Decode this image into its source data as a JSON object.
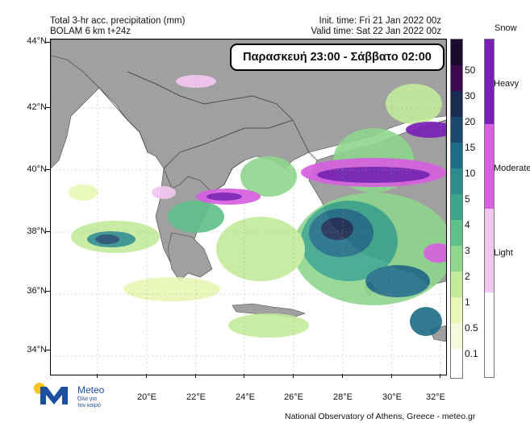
{
  "header": {
    "left_line1": "Total 3-hr acc. precipitation (mm)",
    "left_line2": "BOLAM 6 km t+24z",
    "right_line1": "Init. time: Fri 21 Jan 2022 00z",
    "right_line2": "Valid time: Sat 22 Jan 2022 00z"
  },
  "overlay_title": "Παρασκευή 23:00 - Σάββατο 02:00",
  "lat_labels": [
    "44°N",
    "42°N",
    "40°N",
    "38°N",
    "36°N",
    "34°N"
  ],
  "lon_labels": [
    "20°E",
    "22°E",
    "24°E",
    "26°E",
    "28°E",
    "30°E",
    "32°E"
  ],
  "rain_legend": {
    "labels": [
      "50",
      "30",
      "20",
      "15",
      "10",
      "5",
      "4",
      "3",
      "2",
      "1",
      "0.5",
      "0.1"
    ],
    "colors": [
      "#1a0a2e",
      "#3d0a4f",
      "#1a2b52",
      "#1c4a6e",
      "#1d6b85",
      "#2e8c8c",
      "#3aa58a",
      "#5fc08a",
      "#8fd68e",
      "#c3eb9a",
      "#e8f7b4",
      "#f4fadc",
      "#ffffff"
    ]
  },
  "snow_legend": {
    "title": "Snow",
    "labels": [
      "Heavy",
      "Moderate",
      "Light"
    ],
    "colors": [
      "#7a1fb8",
      "#d75fe0",
      "#f3c6f0",
      "#ffffff"
    ]
  },
  "logo": {
    "name": "Meteo",
    "tagline_1": "Όλα για",
    "tagline_2": "τον καιρό"
  },
  "credit": "National Observatory of Athens, Greece - meteo.gr"
}
